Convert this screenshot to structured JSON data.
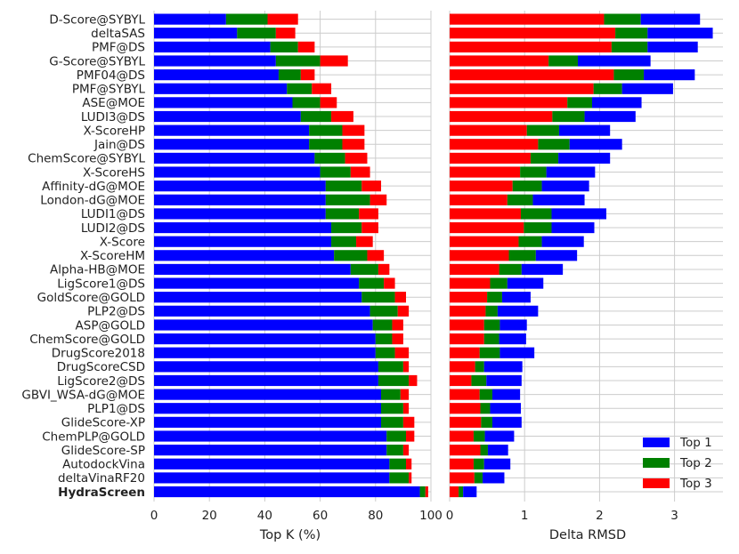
{
  "chart_data": [
    {
      "type": "bar",
      "orientation": "horizontal",
      "stacked": true,
      "xlabel": "Top K (%)",
      "xlim": [
        0,
        100
      ],
      "xticks": [
        "0",
        "20",
        "40",
        "60",
        "80",
        "100"
      ],
      "categories": [
        "D-Score@SYBYL",
        "deltaSAS",
        "PMF@DS",
        "G-Score@SYBYL",
        "PMF04@DS",
        "PMF@SYBYL",
        "ASE@MOE",
        "LUDI3@DS",
        "X-ScoreHP",
        "Jain@DS",
        "ChemScore@SYBYL",
        "X-ScoreHS",
        "Affinity-dG@MOE",
        "London-dG@MOE",
        "LUDI1@DS",
        "LUDI2@DS",
        "X-Score",
        "X-ScoreHM",
        "Alpha-HB@MOE",
        "LigScore1@DS",
        "GoldScore@GOLD",
        "PLP2@DS",
        "ASP@GOLD",
        "ChemScore@GOLD",
        "DrugScore2018",
        "DrugScoreCSD",
        "LigScore2@DS",
        "GBVI_WSA-dG@MOE",
        "PLP1@DS",
        "GlideScore-XP",
        "ChemPLP@GOLD",
        "GlideScore-SP",
        "AutodockVina",
        "deltaVinaRF20",
        "HydraScreen"
      ],
      "highlight": "HydraScreen",
      "series": [
        {
          "name": "Top 1",
          "values": [
            26,
            30,
            42,
            44,
            45,
            48,
            50,
            53,
            56,
            56,
            58,
            60,
            62,
            62,
            62,
            64,
            64,
            65,
            71,
            74,
            75,
            78,
            79,
            80,
            80,
            81,
            81,
            82,
            82,
            82,
            84,
            84,
            85,
            85,
            96
          ]
        },
        {
          "name": "Top 2",
          "values": [
            15,
            14,
            10,
            16,
            8,
            9,
            10,
            11,
            12,
            12,
            11,
            11,
            13,
            16,
            12,
            11,
            9,
            12,
            10,
            9,
            12,
            10,
            7,
            6,
            7,
            9,
            11,
            7,
            8,
            8,
            7,
            6,
            6,
            7,
            2
          ]
        },
        {
          "name": "Top 3",
          "values": [
            11,
            7,
            6,
            10,
            5,
            7,
            6,
            8,
            8,
            8,
            8,
            7,
            7,
            6,
            7,
            6,
            6,
            6,
            4,
            4,
            4,
            4,
            4,
            4,
            5,
            2,
            3,
            3,
            2,
            4,
            3,
            2,
            2,
            1,
            1
          ]
        }
      ]
    },
    {
      "type": "bar",
      "orientation": "horizontal",
      "stacked": true,
      "xlabel": "Delta RMSD",
      "xlim": [
        0,
        3.6
      ],
      "xticks": [
        "0",
        "1",
        "2",
        "3"
      ],
      "categories": [
        "D-Score@SYBYL",
        "deltaSAS",
        "PMF@DS",
        "G-Score@SYBYL",
        "PMF04@DS",
        "PMF@SYBYL",
        "ASE@MOE",
        "LUDI3@DS",
        "X-ScoreHP",
        "Jain@DS",
        "ChemScore@SYBYL",
        "X-ScoreHS",
        "Affinity-dG@MOE",
        "London-dG@MOE",
        "LUDI1@DS",
        "LUDI2@DS",
        "X-Score",
        "X-ScoreHM",
        "Alpha-HB@MOE",
        "LigScore1@DS",
        "GoldScore@GOLD",
        "PLP2@DS",
        "ASP@GOLD",
        "ChemScore@GOLD",
        "DrugScore2018",
        "DrugScoreCSD",
        "LigScore2@DS",
        "GBVI_WSA-dG@MOE",
        "PLP1@DS",
        "GlideScore-XP",
        "ChemPLP@GOLD",
        "GlideScore-SP",
        "AutodockVina",
        "deltaVinaRF20",
        "HydraScreen"
      ],
      "series": [
        {
          "name": "Top 3",
          "values": [
            2.06,
            2.21,
            2.16,
            1.32,
            2.19,
            1.92,
            1.57,
            1.37,
            1.03,
            1.18,
            1.08,
            0.94,
            0.84,
            0.77,
            0.95,
            0.99,
            0.92,
            0.79,
            0.66,
            0.54,
            0.5,
            0.48,
            0.46,
            0.46,
            0.4,
            0.34,
            0.29,
            0.4,
            0.41,
            0.42,
            0.32,
            0.41,
            0.32,
            0.33,
            0.12
          ]
        },
        {
          "name": "Top 2",
          "values": [
            0.49,
            0.43,
            0.48,
            0.39,
            0.4,
            0.38,
            0.33,
            0.43,
            0.43,
            0.42,
            0.37,
            0.35,
            0.39,
            0.34,
            0.41,
            0.37,
            0.31,
            0.36,
            0.3,
            0.23,
            0.2,
            0.16,
            0.21,
            0.2,
            0.27,
            0.12,
            0.2,
            0.17,
            0.13,
            0.15,
            0.15,
            0.1,
            0.14,
            0.11,
            0.06
          ]
        },
        {
          "name": "Top 1",
          "values": [
            0.79,
            0.87,
            0.67,
            0.97,
            0.68,
            0.68,
            0.66,
            0.68,
            0.68,
            0.7,
            0.69,
            0.65,
            0.63,
            0.69,
            0.73,
            0.57,
            0.56,
            0.55,
            0.55,
            0.48,
            0.38,
            0.54,
            0.36,
            0.36,
            0.46,
            0.51,
            0.47,
            0.37,
            0.41,
            0.39,
            0.39,
            0.27,
            0.35,
            0.29,
            0.18
          ]
        }
      ]
    }
  ],
  "legend": {
    "placement": "bottom-right",
    "items": [
      {
        "label": "Top 1",
        "color": "#0000ff"
      },
      {
        "label": "Top 2",
        "color": "#008000"
      },
      {
        "label": "Top 3",
        "color": "#ff0000"
      }
    ]
  },
  "colors": {
    "Top 1": "#0000ff",
    "Top 2": "#008000",
    "Top 3": "#ff0000",
    "grid": "#cccccc"
  }
}
